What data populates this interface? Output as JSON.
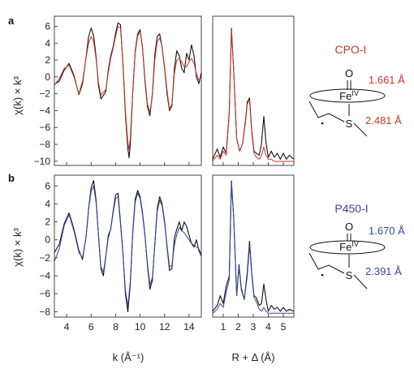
{
  "figure": {
    "panel_labels": [
      "a",
      "b"
    ],
    "ylabel": "χ(k) × k³",
    "xlabel_left": "k (Å⁻¹)",
    "xlabel_right": "R + Δ (Å)",
    "line_colors": {
      "experiment": "#111111",
      "fit_cpo": "#c8392b",
      "fit_p450": "#34499a"
    }
  },
  "structures": [
    {
      "name": "CPO-I",
      "color": "#c8392b",
      "o_label": "O",
      "fe_label": "Fe",
      "fe_sup": "IV",
      "s_label": "S",
      "d1": "1.661 Å",
      "d2": "2.481 Å"
    },
    {
      "name": "P450-I",
      "color": "#34499a",
      "o_label": "O",
      "fe_label": "Fe",
      "fe_sup": "IV",
      "s_label": "S",
      "d1": "1.670 Å",
      "d2": "2.391 Å"
    }
  ],
  "chart_data": [
    {
      "type": "line",
      "panel": "a",
      "side": "k-space",
      "xlabel": "",
      "ylabel": "χ(k) × k³",
      "xlim": [
        3,
        15
      ],
      "ylim": [
        -10.5,
        7.2
      ],
      "xticks": [
        4,
        6,
        8,
        10,
        12,
        14
      ],
      "yticks": [
        -10,
        -8,
        -6,
        -4,
        -2,
        0,
        2,
        4,
        6
      ],
      "series": [
        {
          "role": "data",
          "color": "#111111",
          "x": [
            3.0,
            3.4,
            3.8,
            4.2,
            4.6,
            5.0,
            5.3,
            5.6,
            5.8,
            6.0,
            6.2,
            6.4,
            6.6,
            6.8,
            7.0,
            7.2,
            7.4,
            7.6,
            7.8,
            8.0,
            8.2,
            8.4,
            8.6,
            8.8,
            9.0,
            9.1,
            9.2,
            9.4,
            9.6,
            9.8,
            10.0,
            10.2,
            10.4,
            10.6,
            10.8,
            11.0,
            11.2,
            11.4,
            11.6,
            11.8,
            12.0,
            12.2,
            12.4,
            12.6,
            12.8,
            13.0,
            13.2,
            13.4,
            13.6,
            13.8,
            14.0,
            14.2,
            14.4,
            14.6,
            14.8,
            15.0
          ],
          "y": [
            -0.9,
            -0.5,
            0.8,
            1.6,
            0.2,
            -2.1,
            -0.8,
            2.5,
            4.8,
            5.8,
            4.9,
            2.5,
            -1.0,
            -2.6,
            -2.2,
            -1.7,
            0.8,
            2.5,
            3.6,
            5.2,
            6.4,
            6.2,
            1.5,
            -4.5,
            -8.5,
            -9.6,
            -8.0,
            -2.0,
            3.0,
            5.1,
            5.6,
            3.4,
            -0.5,
            -3.5,
            -4.6,
            -2.0,
            2.6,
            4.8,
            5.1,
            3.5,
            1.0,
            -2.0,
            -4.0,
            -3.4,
            1.0,
            3.1,
            2.5,
            1.0,
            0.5,
            2.8,
            2.0,
            3.8,
            2.5,
            0.0,
            -0.8,
            0.5
          ]
        },
        {
          "role": "fit",
          "color": "#c8392b",
          "x": [
            3.0,
            3.4,
            3.8,
            4.2,
            4.6,
            5.0,
            5.3,
            5.6,
            5.8,
            6.0,
            6.2,
            6.4,
            6.6,
            6.8,
            7.0,
            7.2,
            7.4,
            7.6,
            7.8,
            8.0,
            8.2,
            8.4,
            8.6,
            8.8,
            9.0,
            9.1,
            9.2,
            9.4,
            9.6,
            9.8,
            10.0,
            10.2,
            10.4,
            10.6,
            10.8,
            11.0,
            11.2,
            11.4,
            11.6,
            11.8,
            12.0,
            12.2,
            12.4,
            12.6,
            12.8,
            13.0,
            13.2,
            13.4,
            13.6,
            13.8,
            14.0,
            14.2,
            14.4,
            14.6,
            14.8,
            15.0
          ],
          "y": [
            -1.0,
            -0.2,
            1.0,
            1.4,
            0.0,
            -2.0,
            -0.5,
            2.4,
            4.0,
            4.8,
            4.2,
            2.2,
            -0.6,
            -2.2,
            -1.8,
            -1.5,
            0.5,
            2.2,
            3.4,
            4.8,
            6.0,
            5.8,
            1.8,
            -4.0,
            -7.8,
            -8.6,
            -7.2,
            -1.8,
            2.8,
            4.8,
            5.4,
            3.5,
            -0.2,
            -3.2,
            -4.2,
            -2.2,
            2.0,
            4.2,
            4.6,
            3.6,
            1.2,
            -1.6,
            -3.8,
            -3.2,
            0.4,
            2.0,
            2.2,
            1.8,
            1.2,
            1.2,
            1.8,
            2.2,
            1.6,
            0.4,
            -0.4,
            0.0
          ]
        }
      ]
    },
    {
      "type": "line",
      "panel": "a",
      "side": "R-space",
      "xlabel": "",
      "ylabel": "",
      "xlim": [
        0.3,
        5.7
      ],
      "ylim": [
        -0.1,
        7.2
      ],
      "xticks": [
        1,
        2,
        3,
        4,
        5
      ],
      "series": [
        {
          "role": "data",
          "color": "#111111",
          "x": [
            0.3,
            0.6,
            0.8,
            1.0,
            1.2,
            1.4,
            1.55,
            1.7,
            1.9,
            2.1,
            2.3,
            2.5,
            2.6,
            2.75,
            2.9,
            3.05,
            3.2,
            3.4,
            3.55,
            3.7,
            3.85,
            4.0,
            4.2,
            4.4,
            4.6,
            4.8,
            5.0,
            5.2,
            5.4,
            5.7
          ],
          "y": [
            0.2,
            0.7,
            0.3,
            0.8,
            0.5,
            2.5,
            6.6,
            4.5,
            1.2,
            0.6,
            1.0,
            2.2,
            3.0,
            3.2,
            1.6,
            0.6,
            0.5,
            0.4,
            1.0,
            2.3,
            1.0,
            0.3,
            0.6,
            0.3,
            0.5,
            0.2,
            0.5,
            0.2,
            0.4,
            0.2
          ]
        },
        {
          "role": "fit",
          "color": "#c8392b",
          "x": [
            0.3,
            0.6,
            0.8,
            1.0,
            1.2,
            1.4,
            1.55,
            1.7,
            1.9,
            2.1,
            2.3,
            2.5,
            2.6,
            2.75,
            2.9,
            3.05,
            3.2,
            3.4,
            3.55,
            3.7,
            3.85,
            4.0,
            4.2,
            4.4,
            4.6,
            4.8,
            5.0,
            5.2,
            5.4,
            5.7
          ],
          "y": [
            0.1,
            0.4,
            0.2,
            0.6,
            0.4,
            2.4,
            6.5,
            4.6,
            1.2,
            0.6,
            1.0,
            2.1,
            2.9,
            3.1,
            1.5,
            0.5,
            0.3,
            0.2,
            0.4,
            0.8,
            0.4,
            0.2,
            0.2,
            0.1,
            0.1,
            0.1,
            0.1,
            0.1,
            0.1,
            0.1
          ]
        }
      ]
    },
    {
      "type": "line",
      "panel": "b",
      "side": "k-space",
      "xlabel": "k (Å⁻¹)",
      "ylabel": "χ(k) × k³",
      "xlim": [
        3,
        15
      ],
      "ylim": [
        -8.6,
        7.2
      ],
      "xticks": [
        4,
        6,
        8,
        10,
        12,
        14
      ],
      "yticks": [
        -8,
        -6,
        -4,
        -2,
        0,
        2,
        4,
        6
      ],
      "series": [
        {
          "role": "data",
          "color": "#111111",
          "x": [
            3.0,
            3.4,
            3.8,
            4.2,
            4.6,
            5.0,
            5.3,
            5.6,
            5.8,
            6.0,
            6.2,
            6.4,
            6.6,
            6.8,
            7.0,
            7.2,
            7.4,
            7.6,
            7.8,
            8.0,
            8.2,
            8.4,
            8.6,
            8.8,
            9.0,
            9.2,
            9.4,
            9.6,
            9.8,
            10.0,
            10.2,
            10.4,
            10.6,
            10.8,
            11.0,
            11.2,
            11.4,
            11.6,
            11.8,
            12.0,
            12.2,
            12.4,
            12.6,
            12.8,
            13.0,
            13.2,
            13.4,
            13.6,
            13.8,
            14.0,
            14.2,
            14.4,
            14.6,
            14.8,
            15.0
          ],
          "y": [
            -1.4,
            -0.5,
            1.8,
            3.0,
            1.2,
            -1.2,
            -2.2,
            0.5,
            3.5,
            5.8,
            6.6,
            4.5,
            0.5,
            -3.2,
            -4.0,
            -1.8,
            0.5,
            1.2,
            3.2,
            5.0,
            5.2,
            2.0,
            -1.5,
            -6.0,
            -8.0,
            -5.0,
            0.8,
            4.5,
            5.5,
            4.8,
            3.0,
            0.5,
            -2.8,
            -5.5,
            -4.5,
            -0.5,
            3.5,
            4.8,
            4.0,
            2.0,
            -0.8,
            -3.4,
            -3.2,
            0.2,
            1.2,
            2.0,
            1.0,
            2.0,
            1.5,
            0.5,
            -0.4,
            -0.8,
            0.0,
            -1.2,
            -1.8
          ]
        },
        {
          "role": "fit",
          "color": "#34499a",
          "x": [
            3.0,
            3.4,
            3.8,
            4.2,
            4.6,
            5.0,
            5.3,
            5.6,
            5.8,
            6.0,
            6.2,
            6.4,
            6.6,
            6.8,
            7.0,
            7.2,
            7.4,
            7.6,
            7.8,
            8.0,
            8.2,
            8.4,
            8.6,
            8.8,
            9.0,
            9.2,
            9.4,
            9.6,
            9.8,
            10.0,
            10.2,
            10.4,
            10.6,
            10.8,
            11.0,
            11.2,
            11.4,
            11.6,
            11.8,
            12.0,
            12.2,
            12.4,
            12.6,
            12.8,
            13.0,
            13.2,
            13.4,
            13.6,
            13.8,
            14.0,
            14.2,
            14.4,
            14.6,
            14.8,
            15.0
          ],
          "y": [
            -2.4,
            -1.0,
            1.6,
            2.8,
            1.0,
            -1.4,
            -2.0,
            0.4,
            3.4,
            5.4,
            6.0,
            4.2,
            0.6,
            -3.0,
            -3.6,
            -1.8,
            0.2,
            1.2,
            3.0,
            4.6,
            4.8,
            1.8,
            -1.6,
            -5.6,
            -7.4,
            -4.6,
            0.6,
            4.2,
            5.2,
            4.6,
            2.8,
            0.4,
            -2.6,
            -5.0,
            -4.2,
            -0.6,
            3.2,
            4.4,
            3.8,
            1.8,
            -0.6,
            -3.0,
            -2.8,
            -0.6,
            0.6,
            1.4,
            1.0,
            0.8,
            0.4,
            0.0,
            -0.4,
            -0.6,
            -0.8,
            -1.0,
            -1.6
          ]
        }
      ]
    },
    {
      "type": "line",
      "panel": "b",
      "side": "R-space",
      "xlabel": "R + Δ (Å)",
      "ylabel": "",
      "xlim": [
        0.3,
        5.7
      ],
      "ylim": [
        -0.1,
        7.2
      ],
      "xticks": [
        1,
        2,
        3,
        4,
        5
      ],
      "series": [
        {
          "role": "data",
          "color": "#111111",
          "x": [
            0.3,
            0.6,
            0.8,
            1.0,
            1.2,
            1.4,
            1.55,
            1.7,
            1.9,
            2.05,
            2.2,
            2.4,
            2.6,
            2.75,
            2.9,
            3.05,
            3.2,
            3.4,
            3.55,
            3.7,
            3.85,
            4.0,
            4.2,
            4.4,
            4.6,
            4.8,
            5.0,
            5.2,
            5.4,
            5.7
          ],
          "y": [
            0.2,
            0.5,
            1.0,
            0.6,
            1.5,
            2.0,
            6.9,
            5.0,
            1.0,
            2.6,
            1.4,
            0.8,
            2.2,
            3.8,
            2.2,
            1.0,
            0.9,
            0.5,
            0.6,
            1.6,
            0.8,
            0.2,
            0.5,
            0.3,
            0.4,
            0.2,
            0.4,
            0.2,
            0.3,
            0.2
          ]
        },
        {
          "role": "fit",
          "color": "#34499a",
          "x": [
            0.3,
            0.6,
            0.8,
            1.0,
            1.2,
            1.4,
            1.55,
            1.7,
            1.9,
            2.05,
            2.2,
            2.4,
            2.6,
            2.75,
            2.9,
            3.05,
            3.2,
            3.4,
            3.55,
            3.7,
            3.85,
            4.0,
            4.2,
            4.4,
            4.6,
            4.8,
            5.0,
            5.2,
            5.4,
            5.7
          ],
          "y": [
            0.1,
            0.3,
            0.6,
            0.4,
            1.2,
            1.8,
            6.8,
            5.0,
            1.0,
            2.5,
            1.3,
            0.8,
            2.0,
            3.6,
            2.1,
            0.9,
            0.7,
            0.3,
            0.2,
            0.4,
            0.2,
            0.1,
            0.1,
            0.1,
            0.1,
            0.1,
            0.1,
            0.1,
            0.1,
            0.1
          ]
        }
      ]
    }
  ]
}
